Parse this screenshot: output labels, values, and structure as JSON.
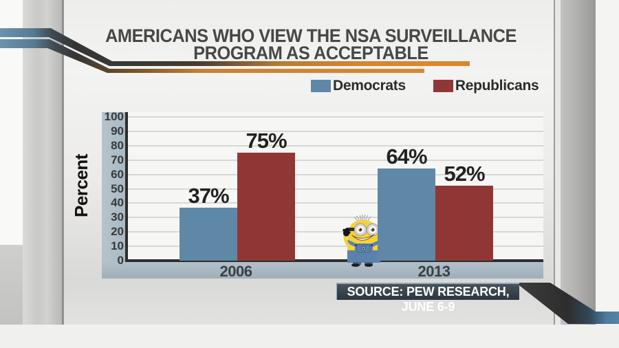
{
  "title": {
    "line1": "AMERICANS WHO VIEW THE NSA SURVEILLANCE",
    "line2": "PROGRAM AS ACCEPTABLE"
  },
  "legend": {
    "items": [
      {
        "label": "Democrats",
        "color": "#5f88a7"
      },
      {
        "label": "Republicans",
        "color": "#903736"
      }
    ]
  },
  "chart_data": {
    "type": "bar",
    "title": "Americans who view the NSA surveillance program as acceptable",
    "categories": [
      "2006",
      "2013"
    ],
    "series": [
      {
        "name": "Democrats",
        "color": "#5f88a7",
        "values": [
          37,
          64
        ]
      },
      {
        "name": "Republicans",
        "color": "#903736",
        "values": [
          75,
          52
        ]
      }
    ],
    "value_labels": [
      "37%",
      "75%",
      "64%",
      "52%"
    ],
    "ylabel": "Percent",
    "ylim": [
      0,
      100
    ],
    "yticks": [
      0,
      10,
      20,
      30,
      40,
      50,
      60,
      70,
      80,
      90,
      100
    ],
    "grid": true,
    "legend_position": "top-right"
  },
  "source": {
    "label": "SOURCE: PEW RESEARCH, JUNE 6-9"
  },
  "decor": {
    "swoosh_orange": "#d9892e",
    "swoosh_blue": "#5583a4",
    "swoosh_dark": "#343434",
    "mascot": "minion-character"
  }
}
